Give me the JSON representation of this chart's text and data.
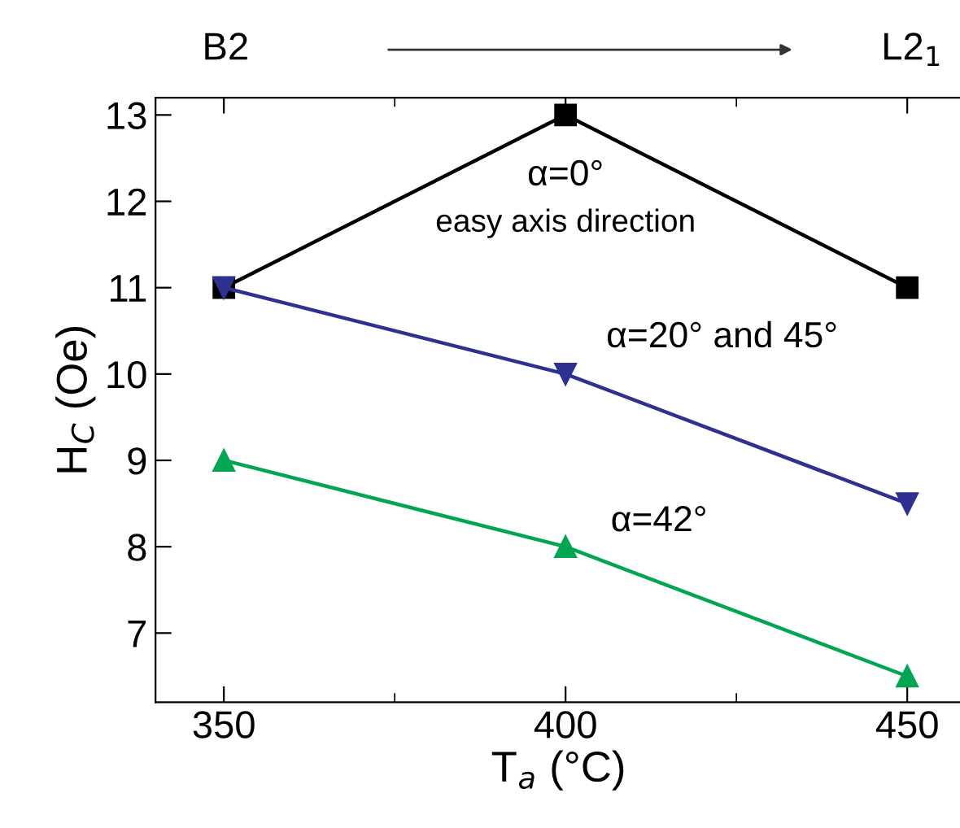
{
  "chart_data": {
    "type": "line",
    "xlabel": "T$_{a}$ (°C)",
    "ylabel": "H$_{C}$ (Oe)",
    "x": [
      350,
      400,
      450
    ],
    "xlim": [
      340,
      458
    ],
    "ylim": [
      6.2,
      13.2
    ],
    "xticks": [
      350,
      400,
      450
    ],
    "yticks": [
      7,
      8,
      9,
      10,
      11,
      12,
      13
    ],
    "grid": false,
    "series": [
      {
        "name": "α=0°",
        "color": "#000000",
        "marker": "square",
        "values": [
          11,
          13,
          11
        ]
      },
      {
        "name": "α=20° and 45°",
        "color": "#2e3192",
        "marker": "triangle_down",
        "values": [
          11,
          10,
          8.5
        ]
      },
      {
        "name": "α=42°",
        "color": "#00a651",
        "marker": "triangle",
        "values": [
          9,
          8,
          6.5
        ]
      }
    ],
    "annotations": [
      "easy axis direction",
      "B2",
      "L2$_{1}$"
    ]
  }
}
